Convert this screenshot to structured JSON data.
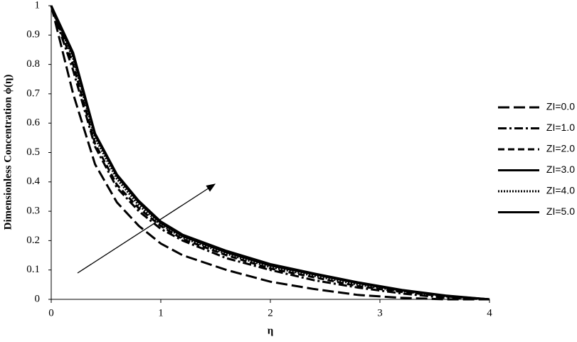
{
  "chart_data": {
    "type": "line",
    "xlabel": "η",
    "ylabel": "Dimensionless Concentration ϕ(η)",
    "x": [
      0,
      0.2,
      0.4,
      0.6,
      0.8,
      1,
      1.2,
      1.6,
      2,
      2.4,
      2.8,
      3.2,
      3.6,
      4
    ],
    "series": [
      {
        "name": "ZI=0.0",
        "color": "#000000",
        "dash": "16,6",
        "values": [
          1,
          0.7,
          0.46,
          0.33,
          0.25,
          0.19,
          0.15,
          0.1,
          0.06,
          0.035,
          0.015,
          0.005,
          0,
          0
        ]
      },
      {
        "name": "ZI=1.0",
        "color": "#000000",
        "dash": "12,4,3,4",
        "values": [
          1,
          0.78,
          0.52,
          0.38,
          0.3,
          0.24,
          0.2,
          0.14,
          0.1,
          0.065,
          0.04,
          0.02,
          0.005,
          0
        ]
      },
      {
        "name": "ZI=2.0",
        "color": "#000000",
        "dash": "9,5",
        "values": [
          1,
          0.8,
          0.53,
          0.39,
          0.31,
          0.25,
          0.205,
          0.15,
          0.105,
          0.075,
          0.045,
          0.025,
          0.01,
          0
        ]
      },
      {
        "name": "ZI=3.0",
        "color": "#000000",
        "dash": "none",
        "values": [
          1,
          0.83,
          0.56,
          0.42,
          0.33,
          0.26,
          0.215,
          0.16,
          0.115,
          0.085,
          0.055,
          0.03,
          0.012,
          0
        ]
      },
      {
        "name": "ZI=4.0",
        "color": "#000000",
        "dash": "2,2",
        "values": [
          1,
          0.82,
          0.55,
          0.41,
          0.32,
          0.255,
          0.21,
          0.155,
          0.11,
          0.08,
          0.05,
          0.028,
          0.011,
          0
        ]
      },
      {
        "name": "ZI=5.0",
        "color": "#000000",
        "dash": "none",
        "values": [
          1,
          0.84,
          0.565,
          0.425,
          0.335,
          0.265,
          0.22,
          0.165,
          0.12,
          0.088,
          0.058,
          0.032,
          0.013,
          0
        ]
      }
    ],
    "xlim": [
      0,
      4
    ],
    "xticks": [
      0,
      1,
      2,
      3,
      4
    ],
    "ylim": [
      0,
      1
    ],
    "yticks": [
      0,
      0.1,
      0.2,
      0.3,
      0.4,
      0.5,
      0.6,
      0.7,
      0.8,
      0.9,
      1
    ],
    "grid": false,
    "legend": "right"
  }
}
